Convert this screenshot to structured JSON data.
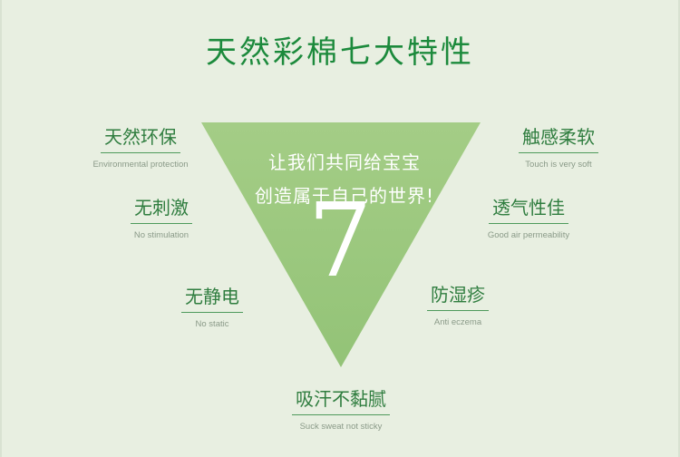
{
  "title": "天然彩棉七大特性",
  "center": {
    "line1": "让我们共同给宝宝",
    "line2": "创造属于自己的世界!",
    "number": "7"
  },
  "features": [
    {
      "zh": "天然环保",
      "en": "Environmental protection"
    },
    {
      "zh": "无刺激",
      "en": "No stimulation"
    },
    {
      "zh": "无静电",
      "en": "No static"
    },
    {
      "zh": "触感柔软",
      "en": "Touch is very soft"
    },
    {
      "zh": "透气性佳",
      "en": "Good air permeability"
    },
    {
      "zh": "防湿疹",
      "en": "Anti eczema"
    },
    {
      "zh": "吸汗不黏腻",
      "en": "Suck sweat not sticky"
    }
  ],
  "colors": {
    "background": "#e8efe1",
    "triangle": "#9fca82",
    "title": "#1c8a3c",
    "feature_text": "#2f7d3f"
  }
}
